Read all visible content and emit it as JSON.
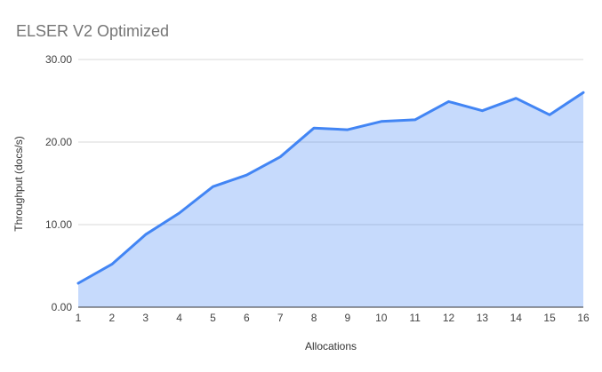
{
  "chart": {
    "title": "ELSER V2 Optimized",
    "x_axis_title": "Allocations",
    "y_axis_title": "Throughput (docs/s)"
  },
  "chart_data": {
    "type": "area",
    "title": "ELSER V2 Optimized",
    "xlabel": "Allocations",
    "ylabel": "Throughput (docs/s)",
    "categories": [
      "1",
      "2",
      "3",
      "4",
      "5",
      "6",
      "7",
      "8",
      "9",
      "10",
      "11",
      "12",
      "13",
      "14",
      "15",
      "16"
    ],
    "values": [
      2.9,
      5.2,
      8.8,
      11.4,
      14.6,
      16.0,
      18.2,
      21.7,
      21.5,
      22.5,
      22.7,
      24.9,
      23.8,
      25.3,
      23.3,
      26.0
    ],
    "ylim": [
      0,
      30
    ],
    "yticks": [
      {
        "value": 0,
        "label": "0.00"
      },
      {
        "value": 10,
        "label": "10.00"
      },
      {
        "value": 20,
        "label": "20.00"
      },
      {
        "value": 30,
        "label": "30.00"
      }
    ],
    "grid": true,
    "legend_position": "none",
    "colors": {
      "line": "#4285F4",
      "fill": "#4285F4",
      "fill_opacity": 0.3,
      "grid": "#d9d9d9",
      "axis_line": "#333333",
      "tick_label": "#424242",
      "title": "#757575",
      "axis_title": "#333333"
    }
  }
}
